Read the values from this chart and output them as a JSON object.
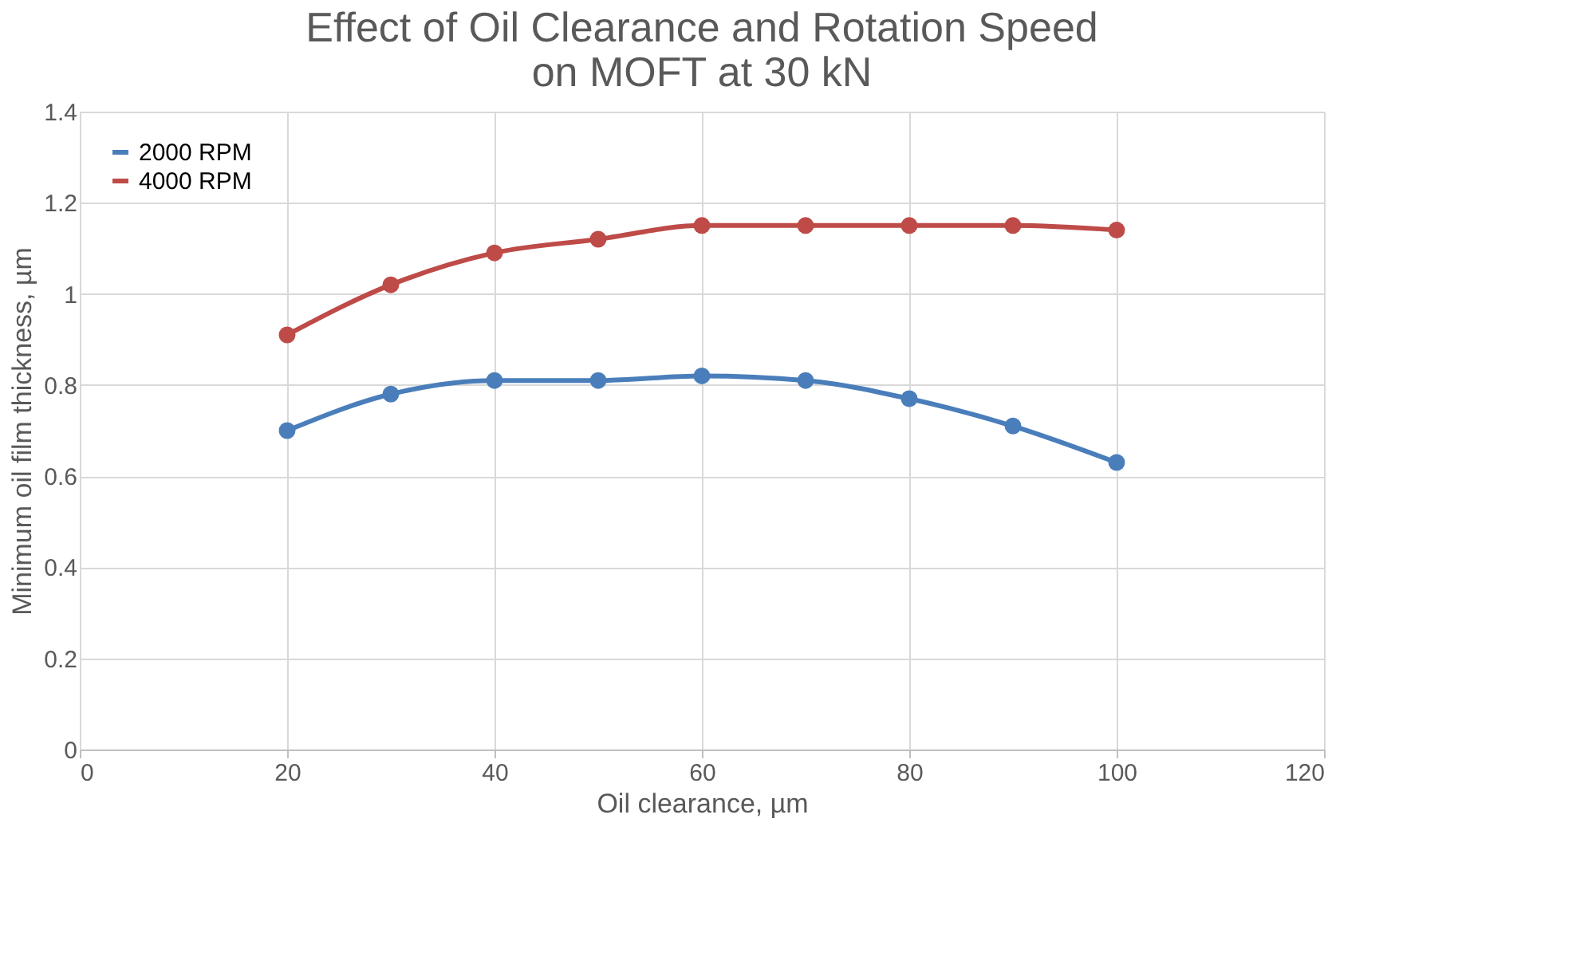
{
  "chart_data": {
    "type": "line",
    "title": [
      "Effect of Oil Clearance and Rotation Speed",
      "on MOFT at 30 kN"
    ],
    "xlabel": "Oil clearance, µm",
    "ylabel": "Minimum oil film thickness, µm",
    "x": [
      20,
      30,
      40,
      50,
      60,
      70,
      80,
      90,
      100
    ],
    "series": [
      {
        "name": "2000 RPM",
        "color": "#4a7ebb",
        "values": [
          0.7,
          0.78,
          0.81,
          0.81,
          0.82,
          0.81,
          0.77,
          0.71,
          0.63
        ]
      },
      {
        "name": "4000 RPM",
        "color": "#be4b48",
        "values": [
          0.91,
          1.02,
          1.09,
          1.12,
          1.15,
          1.15,
          1.15,
          1.15,
          1.14
        ]
      }
    ],
    "xlim": [
      0,
      120
    ],
    "xticks": [
      0,
      20,
      40,
      60,
      80,
      100,
      120
    ],
    "ylim": [
      0,
      1.4
    ],
    "yticks": [
      0,
      0.2,
      0.4,
      0.6,
      0.8,
      1,
      1.2,
      1.4
    ],
    "grid": true,
    "legend": "top left",
    "marker": "circle",
    "line_style": "solid"
  }
}
